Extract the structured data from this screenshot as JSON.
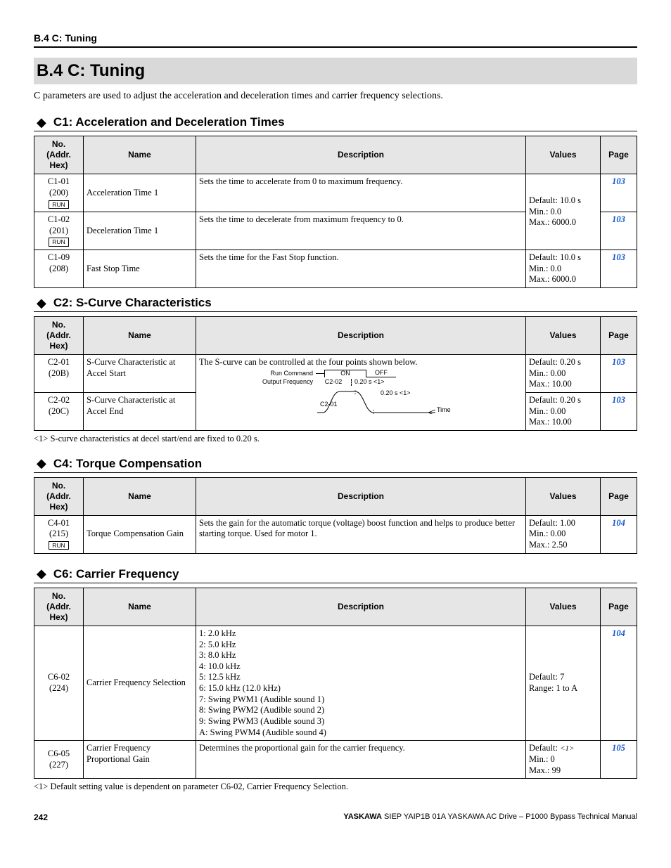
{
  "runningHead": "B.4 C: Tuning",
  "mainTitle": "B.4   C: Tuning",
  "intro": "C parameters are used to adjust the acceleration and deceleration times and carrier frequency selections.",
  "colHeaders": {
    "no": "No.\n(Addr.\nHex)",
    "name": "Name",
    "desc": "Description",
    "values": "Values",
    "page": "Page"
  },
  "runLabel": "RUN",
  "sections": {
    "c1": {
      "title": "C1: Acceleration and Deceleration Times",
      "rows": [
        {
          "no": "C1-01",
          "addr": "(200)",
          "run": true,
          "name": "Acceleration Time 1",
          "desc": "Sets the time to accelerate from 0 to maximum frequency.",
          "valuesShared": "Default: 10.0 s\nMin.: 0.0\nMax.: 6000.0",
          "page": "103",
          "spanVal": 2
        },
        {
          "no": "C1-02",
          "addr": "(201)",
          "run": true,
          "name": "Deceleration Time 1",
          "desc": "Sets the time to decelerate from maximum frequency to 0.",
          "page": "103"
        },
        {
          "no": "C1-09",
          "addr": "(208)",
          "name": "Fast Stop Time",
          "desc": "Sets the time for the Fast Stop function.",
          "values": "Default: 10.0 s\nMin.: 0.0\nMax.: 6000.0",
          "page": "103"
        }
      ]
    },
    "c2": {
      "title": "C2: S-Curve Characteristics",
      "descTop": "The S-curve can be controlled at the four points shown below.",
      "diag": {
        "runCmd": "Run Command",
        "on": "ON",
        "off": "OFF",
        "outFreq": "Output Frequency",
        "c201": "C2-01",
        "c202": "C2-02",
        "note1": "0.20 s <1>",
        "note2": "0.20 s <1>",
        "time": "Time"
      },
      "rows": [
        {
          "no": "C2-01",
          "addr": "(20B)",
          "name": "S-Curve Characteristic at Accel Start",
          "values": "Default: 0.20 s\nMin.: 0.00\nMax.: 10.00",
          "page": "103"
        },
        {
          "no": "C2-02",
          "addr": "(20C)",
          "name": "S-Curve Characteristic at Accel End",
          "values": "Default: 0.20 s\nMin.: 0.00\nMax.: 10.00",
          "page": "103"
        }
      ],
      "footnote": "<1>   S-curve characteristics at decel start/end are fixed to 0.20 s."
    },
    "c4": {
      "title": "C4: Torque Compensation",
      "rows": [
        {
          "no": "C4-01",
          "addr": "(215)",
          "run": true,
          "name": "Torque Compensation Gain",
          "desc": "Sets the gain for the automatic torque (voltage) boost function and helps to produce better starting torque. Used for motor 1.",
          "values": "Default: 1.00\nMin.: 0.00\nMax.: 2.50",
          "page": "104"
        }
      ]
    },
    "c6": {
      "title": "C6: Carrier Frequency",
      "rows": [
        {
          "no": "C6-02",
          "addr": "(224)",
          "name": "Carrier Frequency Selection",
          "desc": "1: 2.0 kHz\n2: 5.0 kHz\n3: 8.0 kHz\n4: 10.0 kHz\n5: 12.5 kHz\n6: 15.0 kHz (12.0 kHz)\n7: Swing PWM1 (Audible sound 1)\n8: Swing PWM2 (Audible sound 2)\n9: Swing PWM3 (Audible sound 3)\nA: Swing PWM4 (Audible sound 4)",
          "values": "Default: 7\nRange: 1 to A",
          "page": "104"
        },
        {
          "no": "C6-05",
          "addr": "(227)",
          "name": "Carrier Frequency Proportional Gain",
          "desc": "Determines the proportional gain for the carrier frequency.",
          "valuesPrefix": "Default: ",
          "valuesSup": "<1>",
          "valuesRest": "Min.: 0\nMax.: 99",
          "page": "105"
        }
      ],
      "footnote": "<1>   Default setting value is dependent on parameter C6-02, Carrier Frequency Selection."
    }
  },
  "footer": {
    "pageNum": "242",
    "docBold": "YASKAWA",
    "docRest": " SIEP YAIP1B 01A YASKAWA AC Drive – P1000 Bypass Technical Manual"
  }
}
